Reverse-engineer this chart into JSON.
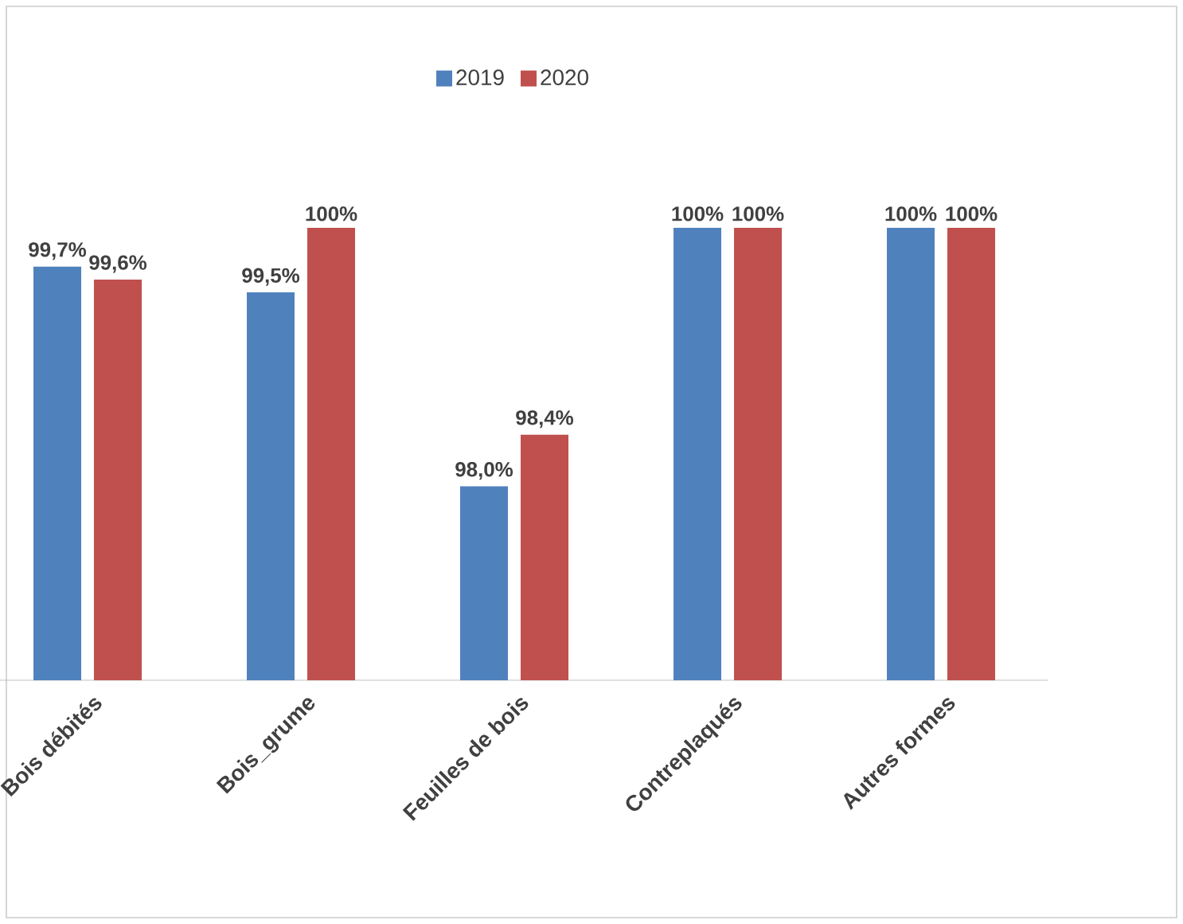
{
  "chart_data": {
    "type": "bar",
    "categories": [
      "Bois débités",
      "Bois_grume",
      "Feuilles de bois",
      "Contreplaqués",
      "Autres formes"
    ],
    "series": [
      {
        "name": "2019",
        "color": "#4f81bd",
        "values": [
          99.7,
          99.5,
          98.0,
          100,
          100
        ],
        "value_labels": [
          "99,7%",
          "99,5%",
          "98,0%",
          "100%",
          "100%"
        ]
      },
      {
        "name": "2020",
        "color": "#c0504d",
        "values": [
          99.6,
          100,
          98.4,
          100,
          100
        ],
        "value_labels": [
          "99,6%",
          "100%",
          "98,4%",
          "100%",
          "100%"
        ]
      }
    ],
    "ylim": [
      96.5,
      100
    ],
    "legend": "top",
    "tick_labels": "x"
  }
}
